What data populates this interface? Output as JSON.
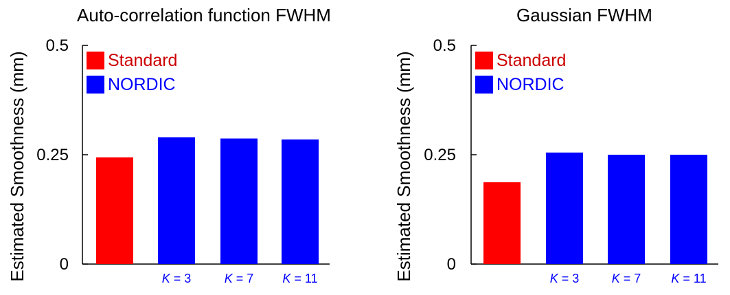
{
  "chart_data": [
    {
      "type": "bar",
      "title": "Auto-correlation function FWHM",
      "xlabel": "",
      "ylabel": "Estimated Smoothness (mm)",
      "ylim": [
        0,
        0.5
      ],
      "yticks": [
        {
          "value": 0,
          "label": "0"
        },
        {
          "value": 0.25,
          "label": "0.25"
        },
        {
          "value": 0.5,
          "label": "0.5"
        }
      ],
      "grid": false,
      "legend_position": "top-left",
      "categories": [
        {
          "k": "",
          "value": ""
        },
        {
          "k": "K",
          "value": " = 3"
        },
        {
          "k": "K",
          "value": " = 7"
        },
        {
          "k": "K",
          "value": " = 11"
        }
      ],
      "series": [
        {
          "name": "Standard",
          "color": "#ff0000",
          "text_color": "#cc0000",
          "values": [
            0.244,
            null,
            null,
            null
          ]
        },
        {
          "name": "NORDIC",
          "color": "#0000ff",
          "text_color": "#0000ff",
          "values": [
            null,
            0.29,
            0.287,
            0.285
          ]
        }
      ]
    },
    {
      "type": "bar",
      "title": "Gaussian FWHM",
      "xlabel": "",
      "ylabel": "Estimated Smoothness (mm)",
      "ylim": [
        0,
        0.5
      ],
      "yticks": [
        {
          "value": 0,
          "label": "0"
        },
        {
          "value": 0.25,
          "label": "0.25"
        },
        {
          "value": 0.5,
          "label": "0.5"
        }
      ],
      "grid": false,
      "legend_position": "top-left",
      "categories": [
        {
          "k": "",
          "value": ""
        },
        {
          "k": "K",
          "value": " = 3"
        },
        {
          "k": "K",
          "value": " = 7"
        },
        {
          "k": "K",
          "value": " = 11"
        }
      ],
      "series": [
        {
          "name": "Standard",
          "color": "#ff0000",
          "text_color": "#cc0000",
          "values": [
            0.187,
            null,
            null,
            null
          ]
        },
        {
          "name": "NORDIC",
          "color": "#0000ff",
          "text_color": "#0000ff",
          "values": [
            null,
            0.255,
            0.25,
            0.25
          ]
        }
      ]
    }
  ]
}
